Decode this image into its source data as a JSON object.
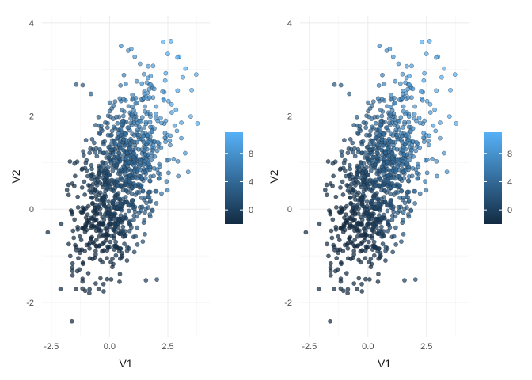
{
  "chart_data": [
    {
      "type": "scatter",
      "panel": "left",
      "xlabel": "V1",
      "ylabel": "V2",
      "xlim": [
        -2.9,
        4.3
      ],
      "ylim": [
        -2.75,
        4.15
      ],
      "x_ticks": [
        -2.5,
        0,
        2.5
      ],
      "x_tick_labels": [
        "-2.5",
        "0.0",
        "2.5"
      ],
      "y_ticks": [
        -2,
        0,
        2,
        4
      ],
      "y_tick_labels": [
        "-2",
        "0",
        "2",
        "4"
      ],
      "grid": true,
      "legend": {
        "placement": "right",
        "type": "colorbar",
        "range": [
          -2,
          11
        ],
        "ticks": [
          0,
          4,
          8
        ],
        "tick_labels": [
          "0",
          "4",
          "8"
        ],
        "low_color": "#132B43",
        "high_color": "#56B1F7"
      },
      "points": {
        "n": 1000,
        "x_mean": 0.5,
        "y_mean": 0.7,
        "x_sd": 1.0,
        "y_sd": 1.0,
        "correlation": 0.48,
        "color_value": "2*V1 + 2*V2",
        "seed": 7
      }
    },
    {
      "type": "scatter",
      "panel": "right",
      "xlabel": "V1",
      "ylabel": "V2",
      "xlim": [
        -2.9,
        4.3
      ],
      "ylim": [
        -2.75,
        4.15
      ],
      "x_ticks": [
        -2.5,
        0,
        2.5
      ],
      "x_tick_labels": [
        "-2.5",
        "0.0",
        "2.5"
      ],
      "y_ticks": [
        -2,
        0,
        2,
        4
      ],
      "y_tick_labels": [
        "-2",
        "0",
        "2",
        "4"
      ],
      "grid": true,
      "legend": {
        "placement": "right",
        "type": "colorbar",
        "range": [
          -2,
          11
        ],
        "ticks": [
          0,
          4,
          8
        ],
        "tick_labels": [
          "0",
          "4",
          "8"
        ],
        "low_color": "#132B43",
        "high_color": "#56B1F7"
      },
      "points": {
        "n": 1000,
        "x_mean": 0.5,
        "y_mean": 0.7,
        "x_sd": 1.0,
        "y_sd": 1.0,
        "correlation": 0.48,
        "color_value": "2*V1 + 2*V2",
        "seed": 7
      }
    }
  ]
}
